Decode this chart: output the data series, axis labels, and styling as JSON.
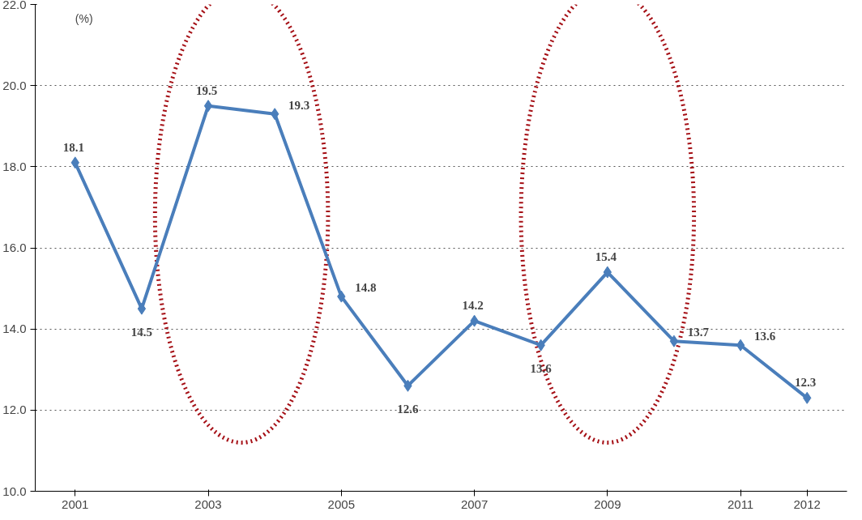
{
  "chart_data": {
    "type": "line",
    "ylabel": "(%)",
    "categories": [
      "2001",
      null,
      "2003",
      null,
      "2005",
      null,
      "2007",
      null,
      "2009",
      null,
      "2011",
      "2012"
    ],
    "series": [
      {
        "color": "#4a7ebb",
        "values": [
          18.1,
          14.5,
          19.5,
          19.3,
          14.8,
          12.6,
          14.2,
          13.6,
          15.4,
          13.7,
          13.6,
          12.3
        ]
      }
    ],
    "ylim": [
      10,
      22
    ],
    "yticks": [
      {
        "value": 10,
        "label": "10.0"
      },
      {
        "value": 12,
        "label": "12.0"
      },
      {
        "value": 14,
        "label": "14.0"
      },
      {
        "value": 16,
        "label": "16.0"
      },
      {
        "value": 18,
        "label": "18.0"
      },
      {
        "value": 20,
        "label": "20.0"
      },
      {
        "value": 22,
        "label": "22.0"
      }
    ],
    "grid": "y",
    "marker": "diamond",
    "line_style": "solid",
    "data_labels": true
  }
}
